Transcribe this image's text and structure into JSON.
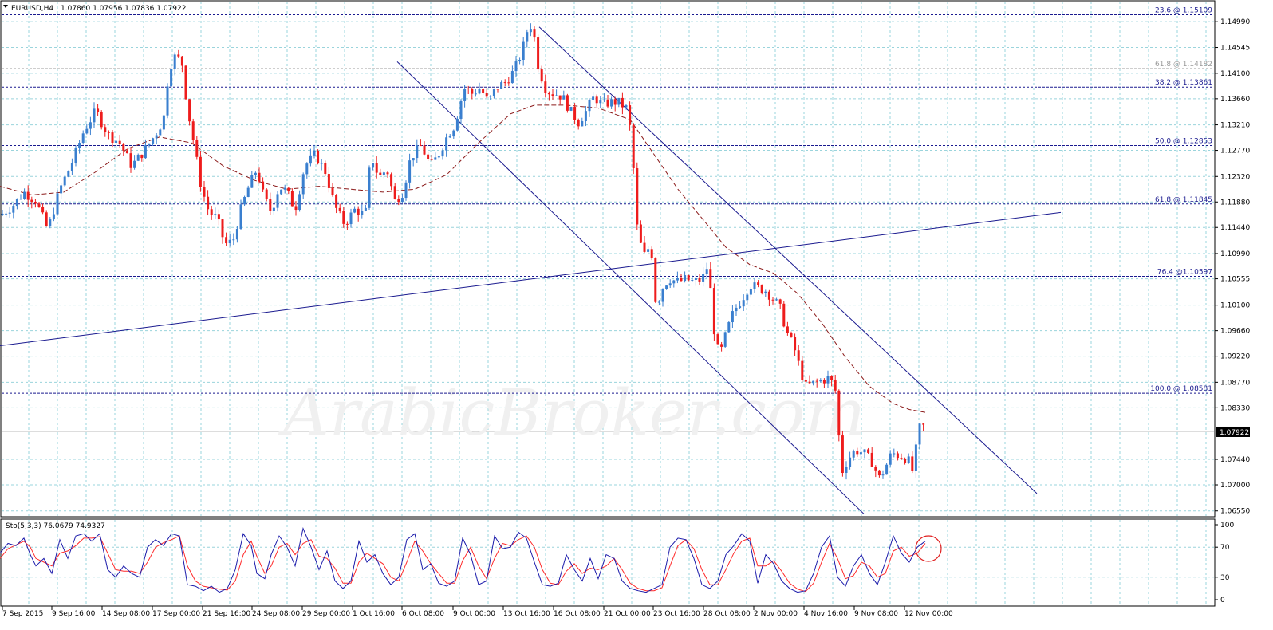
{
  "header": {
    "symbol": "EURUSD,H4",
    "ohlc": "1.07860 1.07956 1.07836 1.07922"
  },
  "indicator": {
    "label": "Sto(5,3,3) 76.0679 74.9327",
    "levels": [
      "100",
      "70",
      "30",
      "0"
    ],
    "main_color": "#1a1aaa",
    "signal_color": "#ff2a2a"
  },
  "watermark": "ArabicBroker.com",
  "current_price": "1.07922",
  "colors": {
    "bull": "#3a7fcf",
    "bear": "#ee1c1c",
    "grid": "#9ad4dc",
    "ma": "#8b1a1a",
    "lines": "#1a1a8f"
  },
  "chart_data": {
    "type": "candlestick",
    "y_ticks": [
      "1.14990",
      "1.14545",
      "1.14100",
      "1.13660",
      "1.13210",
      "1.12770",
      "1.12320",
      "1.11880",
      "1.11440",
      "1.10990",
      "1.10555",
      "1.10100",
      "1.09660",
      "1.09220",
      "1.08770",
      "1.08330",
      "1.07440",
      "1.07000",
      "1.06550"
    ],
    "ylim": [
      1.0645,
      1.1535
    ],
    "x_ticks": [
      "7 Sep 2015",
      "9 Sep 16:00",
      "14 Sep 08:00",
      "17 Sep 00:00",
      "21 Sep 16:00",
      "24 Sep 08:00",
      "29 Sep 00:00",
      "1 Oct 16:00",
      "6 Oct 08:00",
      "9 Oct 00:00",
      "13 Oct 16:00",
      "16 Oct 08:00",
      "21 Oct 00:00",
      "23 Oct 16:00",
      "28 Oct 08:00",
      "2 Nov 00:00",
      "4 Nov 16:00",
      "9 Nov 08:00",
      "12 Nov 00:00"
    ],
    "fib_levels": [
      {
        "label": "23.6 @ 1.15109",
        "value": 1.15109
      },
      {
        "label": "61.8 @ 1.14182",
        "value": 1.14182
      },
      {
        "label": "38.2 @ 1.13861",
        "value": 1.13861
      },
      {
        "label": "50.0 @ 1.12853",
        "value": 1.12853
      },
      {
        "label": "61.8 @ 1.11845",
        "value": 1.11845
      },
      {
        "label": "76.4 @1.10597",
        "value": 1.10597
      },
      {
        "label": "100.0 @ 1.08581",
        "value": 1.08581
      }
    ],
    "trend_lines": [
      {
        "x1": 0,
        "y1": 1.094,
        "x2": 1330,
        "y2": 1.117
      },
      {
        "x1": 498,
        "y1": 1.143,
        "x2": 1083,
        "y2": 1.065
      },
      {
        "x1": 676,
        "y1": 1.149,
        "x2": 1300,
        "y2": 1.0685
      }
    ],
    "price_path": [
      [
        0,
        1.1165
      ],
      [
        15,
        1.118
      ],
      [
        30,
        1.1205
      ],
      [
        45,
        1.119
      ],
      [
        60,
        1.114
      ],
      [
        75,
        1.121
      ],
      [
        90,
        1.1255
      ],
      [
        105,
        1.131
      ],
      [
        120,
        1.1345
      ],
      [
        135,
        1.1305
      ],
      [
        150,
        1.129
      ],
      [
        165,
        1.125
      ],
      [
        180,
        1.1275
      ],
      [
        195,
        1.1305
      ],
      [
        205,
        1.133
      ],
      [
        212,
        1.142
      ],
      [
        220,
        1.144
      ],
      [
        228,
        1.143
      ],
      [
        235,
        1.135
      ],
      [
        243,
        1.129
      ],
      [
        252,
        1.1215
      ],
      [
        262,
        1.117
      ],
      [
        272,
        1.116
      ],
      [
        282,
        1.1115
      ],
      [
        292,
        1.112
      ],
      [
        302,
        1.1175
      ],
      [
        312,
        1.1215
      ],
      [
        322,
        1.1245
      ],
      [
        330,
        1.12
      ],
      [
        340,
        1.117
      ],
      [
        350,
        1.1215
      ],
      [
        360,
        1.1205
      ],
      [
        370,
        1.1175
      ],
      [
        382,
        1.125
      ],
      [
        395,
        1.127
      ],
      [
        408,
        1.124
      ],
      [
        420,
        1.118
      ],
      [
        432,
        1.115
      ],
      [
        445,
        1.1175
      ],
      [
        458,
        1.1165
      ],
      [
        465,
        1.127
      ],
      [
        475,
        1.123
      ],
      [
        485,
        1.1245
      ],
      [
        495,
        1.119
      ],
      [
        505,
        1.1205
      ],
      [
        515,
        1.1265
      ],
      [
        528,
        1.1285
      ],
      [
        540,
        1.125
      ],
      [
        550,
        1.127
      ],
      [
        560,
        1.13
      ],
      [
        570,
        1.132
      ],
      [
        582,
        1.1385
      ],
      [
        592,
        1.1375
      ],
      [
        602,
        1.1385
      ],
      [
        612,
        1.136
      ],
      [
        622,
        1.1385
      ],
      [
        634,
        1.1395
      ],
      [
        645,
        1.1415
      ],
      [
        655,
        1.145
      ],
      [
        663,
        1.1495
      ],
      [
        668,
        1.149
      ],
      [
        675,
        1.142
      ],
      [
        685,
        1.138
      ],
      [
        695,
        1.1375
      ],
      [
        705,
        1.137
      ],
      [
        715,
        1.1345
      ],
      [
        725,
        1.1325
      ],
      [
        735,
        1.1345
      ],
      [
        745,
        1.137
      ],
      [
        755,
        1.1355
      ],
      [
        765,
        1.136
      ],
      [
        775,
        1.136
      ],
      [
        785,
        1.135
      ],
      [
        792,
        1.13
      ],
      [
        798,
        1.115
      ],
      [
        804,
        1.111
      ],
      [
        810,
        1.109
      ],
      [
        816,
        1.113
      ],
      [
        820,
        1.102
      ],
      [
        826,
        1.102
      ],
      [
        832,
        1.1045
      ],
      [
        840,
        1.1055
      ],
      [
        850,
        1.105
      ],
      [
        860,
        1.1055
      ],
      [
        870,
        1.105
      ],
      [
        880,
        1.1055
      ],
      [
        888,
        1.108
      ],
      [
        895,
        1.097
      ],
      [
        902,
        1.092
      ],
      [
        910,
        1.096
      ],
      [
        920,
        1.1
      ],
      [
        930,
        1.102
      ],
      [
        940,
        1.1045
      ],
      [
        950,
        1.104
      ],
      [
        960,
        1.1035
      ],
      [
        970,
        1.102
      ],
      [
        978,
        1.1005
      ],
      [
        986,
        1.0965
      ],
      [
        995,
        1.094
      ],
      [
        1003,
        1.09
      ],
      [
        1010,
        1.087
      ],
      [
        1020,
        1.0875
      ],
      [
        1030,
        1.088
      ],
      [
        1040,
        1.0885
      ],
      [
        1048,
        1.086
      ],
      [
        1055,
        1.072
      ],
      [
        1063,
        1.0745
      ],
      [
        1073,
        1.076
      ],
      [
        1083,
        1.0755
      ],
      [
        1093,
        1.074
      ],
      [
        1103,
        1.071
      ],
      [
        1110,
        1.073
      ],
      [
        1118,
        1.0755
      ],
      [
        1128,
        1.075
      ],
      [
        1138,
        1.0745
      ],
      [
        1145,
        1.072
      ],
      [
        1150,
        1.078
      ],
      [
        1155,
        1.081
      ],
      [
        1160,
        1.07922
      ]
    ],
    "ma_path": [
      [
        0,
        1.1215
      ],
      [
        40,
        1.12
      ],
      [
        80,
        1.1205
      ],
      [
        120,
        1.124
      ],
      [
        160,
        1.128
      ],
      [
        200,
        1.13
      ],
      [
        240,
        1.129
      ],
      [
        280,
        1.125
      ],
      [
        320,
        1.1225
      ],
      [
        360,
        1.121
      ],
      [
        400,
        1.1215
      ],
      [
        440,
        1.121
      ],
      [
        480,
        1.1205
      ],
      [
        520,
        1.121
      ],
      [
        560,
        1.1235
      ],
      [
        600,
        1.129
      ],
      [
        640,
        1.134
      ],
      [
        670,
        1.1355
      ],
      [
        710,
        1.1355
      ],
      [
        750,
        1.135
      ],
      [
        790,
        1.133
      ],
      [
        820,
        1.127
      ],
      [
        850,
        1.121
      ],
      [
        880,
        1.116
      ],
      [
        910,
        1.111
      ],
      [
        940,
        1.108
      ],
      [
        970,
        1.1065
      ],
      [
        1000,
        1.103
      ],
      [
        1030,
        1.098
      ],
      [
        1060,
        1.092
      ],
      [
        1090,
        1.087
      ],
      [
        1120,
        1.084
      ],
      [
        1140,
        1.083
      ],
      [
        1160,
        1.0825
      ]
    ],
    "stochastic_main": [
      [
        0,
        62
      ],
      [
        10,
        75
      ],
      [
        20,
        72
      ],
      [
        30,
        82
      ],
      [
        38,
        60
      ],
      [
        45,
        45
      ],
      [
        55,
        55
      ],
      [
        65,
        35
      ],
      [
        75,
        80
      ],
      [
        85,
        55
      ],
      [
        95,
        85
      ],
      [
        105,
        88
      ],
      [
        115,
        78
      ],
      [
        125,
        88
      ],
      [
        135,
        40
      ],
      [
        145,
        30
      ],
      [
        155,
        45
      ],
      [
        165,
        35
      ],
      [
        175,
        30
      ],
      [
        185,
        70
      ],
      [
        195,
        80
      ],
      [
        205,
        72
      ],
      [
        215,
        88
      ],
      [
        225,
        85
      ],
      [
        235,
        20
      ],
      [
        245,
        18
      ],
      [
        255,
        12
      ],
      [
        265,
        18
      ],
      [
        275,
        10
      ],
      [
        285,
        15
      ],
      [
        295,
        40
      ],
      [
        305,
        88
      ],
      [
        315,
        72
      ],
      [
        322,
        35
      ],
      [
        332,
        28
      ],
      [
        340,
        60
      ],
      [
        350,
        85
      ],
      [
        360,
        70
      ],
      [
        370,
        45
      ],
      [
        380,
        95
      ],
      [
        390,
        70
      ],
      [
        400,
        40
      ],
      [
        410,
        65
      ],
      [
        420,
        25
      ],
      [
        430,
        15
      ],
      [
        440,
        25
      ],
      [
        450,
        78
      ],
      [
        460,
        50
      ],
      [
        470,
        60
      ],
      [
        480,
        35
      ],
      [
        490,
        20
      ],
      [
        500,
        30
      ],
      [
        510,
        80
      ],
      [
        520,
        88
      ],
      [
        530,
        40
      ],
      [
        540,
        48
      ],
      [
        550,
        22
      ],
      [
        560,
        18
      ],
      [
        570,
        25
      ],
      [
        580,
        82
      ],
      [
        590,
        60
      ],
      [
        600,
        20
      ],
      [
        610,
        25
      ],
      [
        620,
        85
      ],
      [
        630,
        68
      ],
      [
        640,
        70
      ],
      [
        650,
        90
      ],
      [
        660,
        82
      ],
      [
        670,
        50
      ],
      [
        680,
        20
      ],
      [
        690,
        18
      ],
      [
        700,
        22
      ],
      [
        710,
        60
      ],
      [
        720,
        40
      ],
      [
        730,
        25
      ],
      [
        740,
        55
      ],
      [
        750,
        28
      ],
      [
        760,
        60
      ],
      [
        770,
        55
      ],
      [
        780,
        25
      ],
      [
        790,
        15
      ],
      [
        800,
        12
      ],
      [
        810,
        10
      ],
      [
        820,
        15
      ],
      [
        830,
        20
      ],
      [
        840,
        70
      ],
      [
        850,
        82
      ],
      [
        860,
        80
      ],
      [
        870,
        55
      ],
      [
        880,
        20
      ],
      [
        890,
        15
      ],
      [
        900,
        25
      ],
      [
        910,
        60
      ],
      [
        920,
        72
      ],
      [
        930,
        88
      ],
      [
        940,
        78
      ],
      [
        950,
        22
      ],
      [
        960,
        60
      ],
      [
        970,
        48
      ],
      [
        980,
        25
      ],
      [
        990,
        15
      ],
      [
        1000,
        10
      ],
      [
        1010,
        12
      ],
      [
        1020,
        35
      ],
      [
        1030,
        70
      ],
      [
        1040,
        85
      ],
      [
        1050,
        30
      ],
      [
        1060,
        18
      ],
      [
        1070,
        45
      ],
      [
        1080,
        60
      ],
      [
        1090,
        35
      ],
      [
        1100,
        20
      ],
      [
        1110,
        50
      ],
      [
        1120,
        85
      ],
      [
        1130,
        62
      ],
      [
        1140,
        50
      ],
      [
        1150,
        70
      ],
      [
        1160,
        78
      ]
    ],
    "stochastic_signal": [
      [
        0,
        55
      ],
      [
        10,
        68
      ],
      [
        20,
        73
      ],
      [
        30,
        78
      ],
      [
        38,
        70
      ],
      [
        45,
        55
      ],
      [
        55,
        50
      ],
      [
        65,
        45
      ],
      [
        75,
        62
      ],
      [
        85,
        65
      ],
      [
        95,
        72
      ],
      [
        105,
        82
      ],
      [
        115,
        82
      ],
      [
        125,
        84
      ],
      [
        135,
        62
      ],
      [
        145,
        40
      ],
      [
        155,
        38
      ],
      [
        165,
        38
      ],
      [
        175,
        35
      ],
      [
        185,
        50
      ],
      [
        195,
        70
      ],
      [
        205,
        76
      ],
      [
        215,
        80
      ],
      [
        225,
        85
      ],
      [
        235,
        45
      ],
      [
        245,
        25
      ],
      [
        255,
        18
      ],
      [
        265,
        16
      ],
      [
        275,
        14
      ],
      [
        285,
        13
      ],
      [
        295,
        25
      ],
      [
        305,
        60
      ],
      [
        315,
        78
      ],
      [
        322,
        58
      ],
      [
        332,
        35
      ],
      [
        340,
        45
      ],
      [
        350,
        70
      ],
      [
        360,
        75
      ],
      [
        370,
        60
      ],
      [
        380,
        75
      ],
      [
        390,
        80
      ],
      [
        400,
        58
      ],
      [
        410,
        55
      ],
      [
        420,
        42
      ],
      [
        430,
        22
      ],
      [
        440,
        22
      ],
      [
        450,
        50
      ],
      [
        460,
        62
      ],
      [
        470,
        55
      ],
      [
        480,
        48
      ],
      [
        490,
        30
      ],
      [
        500,
        25
      ],
      [
        510,
        50
      ],
      [
        520,
        78
      ],
      [
        530,
        65
      ],
      [
        540,
        48
      ],
      [
        550,
        35
      ],
      [
        560,
        22
      ],
      [
        570,
        22
      ],
      [
        580,
        52
      ],
      [
        590,
        70
      ],
      [
        600,
        45
      ],
      [
        610,
        28
      ],
      [
        620,
        55
      ],
      [
        630,
        75
      ],
      [
        640,
        72
      ],
      [
        650,
        80
      ],
      [
        660,
        85
      ],
      [
        670,
        70
      ],
      [
        680,
        40
      ],
      [
        690,
        22
      ],
      [
        700,
        20
      ],
      [
        710,
        38
      ],
      [
        720,
        48
      ],
      [
        730,
        35
      ],
      [
        740,
        42
      ],
      [
        750,
        40
      ],
      [
        760,
        45
      ],
      [
        770,
        55
      ],
      [
        780,
        40
      ],
      [
        790,
        22
      ],
      [
        800,
        15
      ],
      [
        810,
        12
      ],
      [
        820,
        12
      ],
      [
        830,
        16
      ],
      [
        840,
        45
      ],
      [
        850,
        72
      ],
      [
        860,
        80
      ],
      [
        870,
        68
      ],
      [
        880,
        40
      ],
      [
        890,
        20
      ],
      [
        900,
        20
      ],
      [
        910,
        40
      ],
      [
        920,
        62
      ],
      [
        930,
        78
      ],
      [
        940,
        82
      ],
      [
        950,
        45
      ],
      [
        960,
        45
      ],
      [
        970,
        52
      ],
      [
        980,
        38
      ],
      [
        990,
        22
      ],
      [
        1000,
        14
      ],
      [
        1010,
        11
      ],
      [
        1020,
        22
      ],
      [
        1030,
        50
      ],
      [
        1040,
        75
      ],
      [
        1050,
        55
      ],
      [
        1060,
        28
      ],
      [
        1070,
        32
      ],
      [
        1080,
        50
      ],
      [
        1090,
        45
      ],
      [
        1100,
        30
      ],
      [
        1110,
        35
      ],
      [
        1120,
        65
      ],
      [
        1130,
        70
      ],
      [
        1140,
        58
      ],
      [
        1150,
        62
      ],
      [
        1160,
        75
      ]
    ]
  }
}
